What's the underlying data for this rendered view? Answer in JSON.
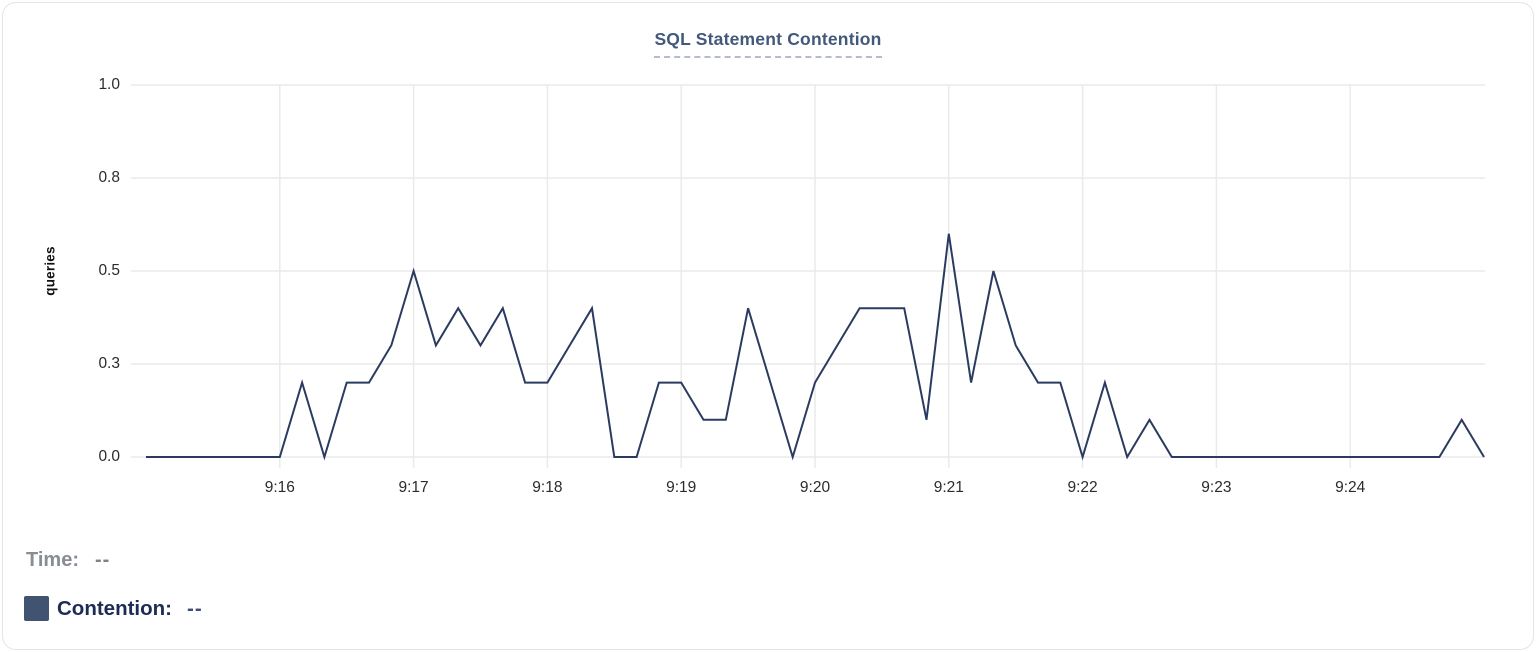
{
  "chart": {
    "title": "SQL Statement Contention",
    "y_axis_label": "queries",
    "y_ticks": [
      {
        "value": 1.0,
        "label": "1.0"
      },
      {
        "value": 0.75,
        "label": "0.8"
      },
      {
        "value": 0.5,
        "label": "0.5"
      },
      {
        "value": 0.25,
        "label": "0.3"
      },
      {
        "value": 0.0,
        "label": "0.0"
      }
    ],
    "x_ticks": [
      {
        "seconds": 60,
        "label": "9:16"
      },
      {
        "seconds": 120,
        "label": "9:17"
      },
      {
        "seconds": 180,
        "label": "9:18"
      },
      {
        "seconds": 240,
        "label": "9:19"
      },
      {
        "seconds": 300,
        "label": "9:20"
      },
      {
        "seconds": 360,
        "label": "9:21"
      },
      {
        "seconds": 420,
        "label": "9:22"
      },
      {
        "seconds": 480,
        "label": "9:23"
      },
      {
        "seconds": 540,
        "label": "9:24"
      }
    ]
  },
  "chart_data": {
    "type": "line",
    "title": "SQL Statement Contention",
    "xlabel": "",
    "ylabel": "queries",
    "ylim": [
      0,
      1
    ],
    "x_range": [
      "9:15:00",
      "9:25:00"
    ],
    "x_tick_labels": [
      "9:16",
      "9:17",
      "9:18",
      "9:19",
      "9:20",
      "9:21",
      "9:22",
      "9:23",
      "9:24"
    ],
    "y_tick_labels": [
      "0.0",
      "0.3",
      "0.5",
      "0.8",
      "1.0"
    ],
    "grid": true,
    "legend_position": "bottom-left",
    "series": [
      {
        "name": "Contention",
        "color": "#2b3b60",
        "start_time": "9:15:00",
        "interval_seconds": 10,
        "values": [
          0,
          0,
          0,
          0,
          0,
          0,
          0,
          0.2,
          0,
          0.2,
          0.2,
          0.3,
          0.5,
          0.3,
          0.4,
          0.3,
          0.4,
          0.2,
          0.2,
          0.3,
          0.4,
          0,
          0,
          0.2,
          0.2,
          0.1,
          0.1,
          0.4,
          0.2,
          0,
          0.2,
          0.3,
          0.4,
          0.4,
          0.4,
          0.1,
          0.6,
          0.2,
          0.5,
          0.3,
          0.2,
          0.2,
          0,
          0.2,
          0,
          0.1,
          0,
          0,
          0,
          0,
          0,
          0,
          0,
          0,
          0,
          0,
          0,
          0,
          0,
          0.1,
          0
        ]
      }
    ]
  },
  "legend": {
    "time_label": "Time:",
    "time_value": "--",
    "series_label": "Contention:",
    "series_value": "--"
  },
  "colors": {
    "line": "#2b3b60",
    "grid": "#eaeaea",
    "title": "#43597b",
    "title_underline": "#b4bad6",
    "axis_text": "#2b2b2b",
    "time_label": "#878d93",
    "contention_label": "#1d2c55",
    "contention_value": "#3e4b74",
    "swatch": "#405471"
  }
}
